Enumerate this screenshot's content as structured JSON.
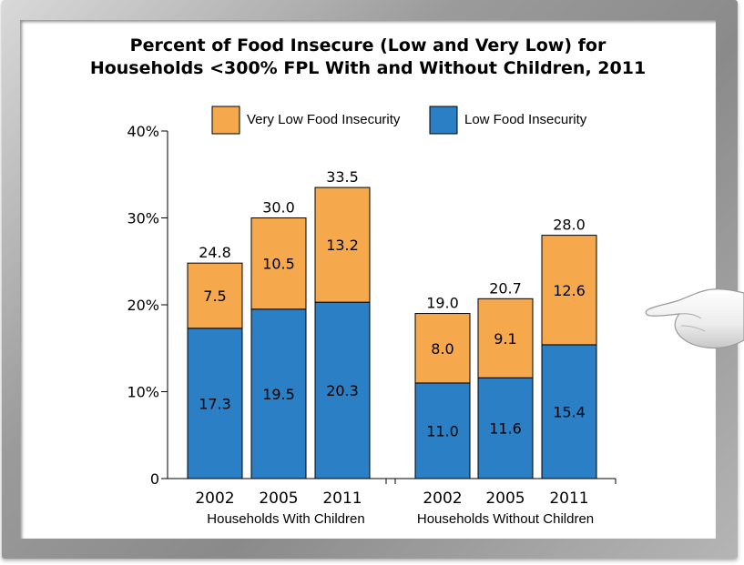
{
  "chart_data": {
    "type": "bar",
    "stacked": true,
    "title_lines": [
      "Percent of Food Insecure (Low and Very Low) for",
      "Households <300% FPL With and Without Children, 2011"
    ],
    "ylim": [
      0,
      40
    ],
    "y_ticks": [
      {
        "value": 0,
        "label": "0"
      },
      {
        "value": 10,
        "label": "10%"
      },
      {
        "value": 20,
        "label": "20%"
      },
      {
        "value": 30,
        "label": "30%"
      },
      {
        "value": 40,
        "label": "40%"
      }
    ],
    "legend_position": "top",
    "groups": [
      {
        "label": "Households With Children",
        "categories": [
          "2002",
          "2005",
          "2011"
        ]
      },
      {
        "label": "Households Without Children",
        "categories": [
          "2002",
          "2005",
          "2011"
        ]
      }
    ],
    "series": [
      {
        "name": "Low Food Insecurity",
        "color": "#2a7fc5",
        "values": [
          17.3,
          19.5,
          20.3,
          11.0,
          11.6,
          15.4
        ],
        "labels": [
          "17.3",
          "19.5",
          "20.3",
          "11.0",
          "11.6",
          "15.4"
        ]
      },
      {
        "name": "Very Low Food Insecurity",
        "color": "#f6a84c",
        "values": [
          7.5,
          10.5,
          13.2,
          8.0,
          9.1,
          12.6
        ],
        "labels": [
          "7.5",
          "10.5",
          "13.2",
          "8.0",
          "9.1",
          "12.6"
        ]
      }
    ],
    "totals": [
      24.8,
      30.0,
      33.5,
      19.0,
      20.7,
      28.0
    ],
    "total_labels": [
      "24.8",
      "30.0",
      "33.5",
      "19.0",
      "20.7",
      "28.0"
    ],
    "grid": false
  }
}
